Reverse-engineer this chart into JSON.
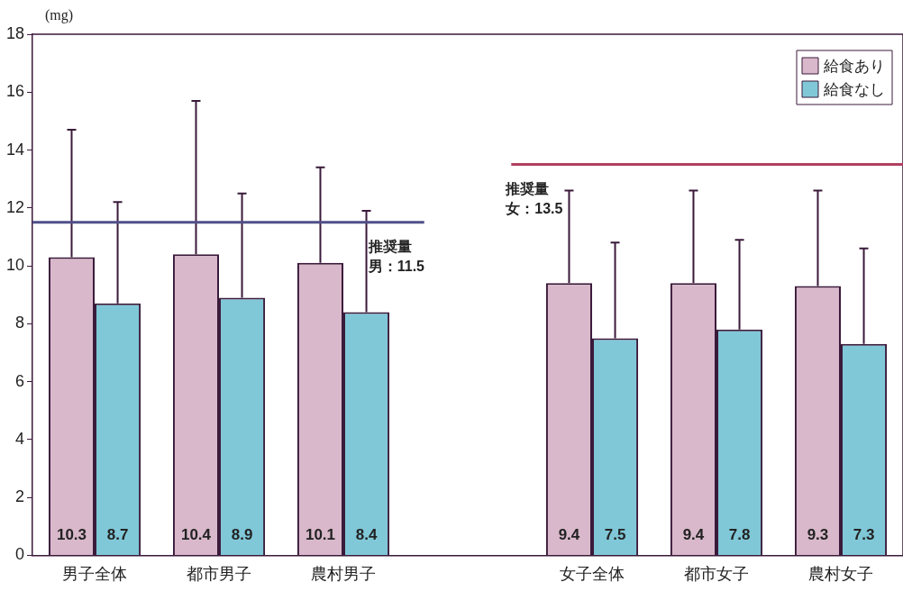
{
  "chart_data": {
    "type": "bar",
    "ylabel": "(mg)",
    "categories": [
      "男子全体",
      "都市男子",
      "農村男子",
      null,
      "女子全体",
      "都市女子",
      "農村女子"
    ],
    "series": [
      {
        "name": "給食あり",
        "color": "#d8b8ca",
        "values": [
          10.3,
          10.4,
          10.1,
          null,
          9.4,
          9.4,
          9.3
        ],
        "errors": [
          [
            10.3,
            14.7
          ],
          [
            10.4,
            15.7
          ],
          [
            10.1,
            13.4
          ],
          null,
          [
            9.4,
            12.6
          ],
          [
            9.4,
            12.6
          ],
          [
            9.3,
            12.6
          ]
        ]
      },
      {
        "name": "給食なし",
        "color": "#80c8d8",
        "values": [
          8.7,
          8.9,
          8.4,
          null,
          7.5,
          7.8,
          7.3
        ],
        "errors": [
          [
            8.7,
            12.2
          ],
          [
            8.9,
            12.5
          ],
          [
            8.4,
            11.9
          ],
          null,
          [
            7.5,
            10.8
          ],
          [
            7.8,
            10.9
          ],
          [
            7.3,
            10.6
          ]
        ]
      }
    ],
    "ylim": [
      0,
      18
    ],
    "yticks": [
      0,
      2,
      4,
      6,
      8,
      10,
      12,
      14,
      16,
      18
    ],
    "grid": false,
    "legend": "top right",
    "data_labels": true,
    "ref_lines": [
      {
        "axis": "y",
        "value": 11.5,
        "label": "推奨量男：11.5",
        "color": "#50508a"
      },
      {
        "axis": "y",
        "value": 13.5,
        "label": "推奨量女：13.5",
        "color": "#b04060"
      }
    ]
  }
}
